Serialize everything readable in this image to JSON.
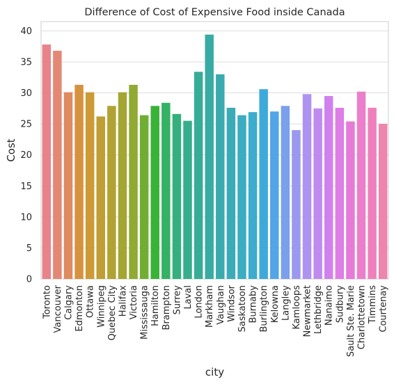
{
  "chart_data": {
    "type": "bar",
    "title": "Difference of Cost of Expensive Food inside Canada",
    "xlabel": "city",
    "ylabel": "Cost",
    "ylim": [
      0,
      41.5
    ],
    "yticks": [
      0,
      5,
      10,
      15,
      20,
      25,
      30,
      35,
      40
    ],
    "grid": "horizontal",
    "categories": [
      "Toronto",
      "Vancouver",
      "Calgary",
      "Edmonton",
      "Ottawa",
      "Winnipeg",
      "Quebec City",
      "Halifax",
      "Victoria",
      "Mississauga",
      "Hamilton",
      "Brampton",
      "Surrey",
      "Laval",
      "London",
      "Markham",
      "Vaughan",
      "Windsor",
      "Saskatoon",
      "Burnaby",
      "Burlington",
      "Kelowna",
      "Langley",
      "Kamloops",
      "Newmarket",
      "Lethbridge",
      "Nanaimo",
      "Sudbury",
      "Sault Ste. Marie",
      "Charlottetown",
      "Timmins",
      "Courtenay"
    ],
    "values": [
      37.8,
      36.8,
      30.1,
      31.3,
      30.1,
      26.2,
      27.9,
      30.1,
      31.3,
      26.4,
      27.9,
      28.4,
      26.6,
      25.5,
      33.4,
      39.4,
      33.0,
      27.6,
      26.4,
      26.9,
      30.6,
      27.0,
      27.9,
      24.0,
      29.8,
      27.5,
      29.5,
      27.6,
      25.4,
      30.2,
      27.6,
      25.0
    ],
    "colors": [
      "#e8838b",
      "#e48876",
      "#df8a5f",
      "#d7923f",
      "#cd9a36",
      "#c09e33",
      "#b2a233",
      "#a4a633",
      "#90aa33",
      "#70ae32",
      "#39b337",
      "#33b263",
      "#35b07c",
      "#36ae8c",
      "#37ad98",
      "#38aca4",
      "#39abae",
      "#3aacb8",
      "#3badc2",
      "#3cadcd",
      "#3eaadb",
      "#52a5e7",
      "#7aa0ec",
      "#9a99ef",
      "#ae93f0",
      "#c08bf0",
      "#d181ed",
      "#de7de6",
      "#e67ad9",
      "#eb7fcb",
      "#ee81bd",
      "#ee85ad"
    ]
  }
}
